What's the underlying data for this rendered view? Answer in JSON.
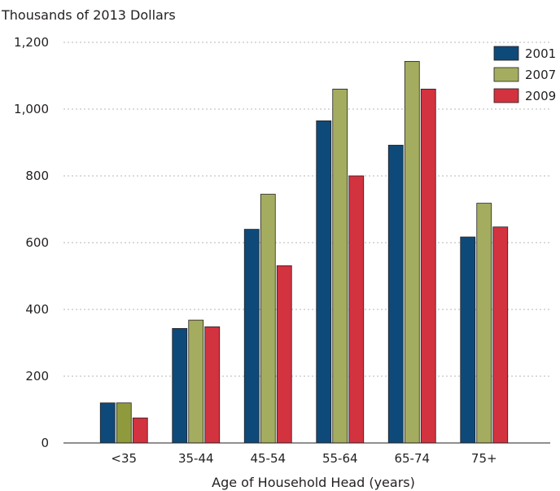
{
  "chart_data": {
    "type": "bar",
    "ylabel": "Thousands of 2013 Dollars",
    "xlabel": "Age of Household Head (years)",
    "categories": [
      "<35",
      "35-44",
      "45-54",
      "55-64",
      "65-74",
      "75+"
    ],
    "series": [
      {
        "name": "2001",
        "color": "#0e4a79",
        "values": [
          120,
          343,
          640,
          965,
          892,
          617
        ]
      },
      {
        "name": "2007",
        "color": "#a4ad5f",
        "values": [
          120,
          368,
          745,
          1060,
          1143,
          718
        ]
      },
      {
        "name": "2009",
        "color": "#d3323f",
        "values": [
          75,
          348,
          531,
          800,
          1060,
          647
        ]
      }
    ],
    "highlight": {
      "category_index": 0,
      "series_index": 1,
      "color": "#8f9a3c"
    },
    "ylim": [
      0,
      1200
    ],
    "yticks": [
      0,
      200,
      400,
      600,
      800,
      1000,
      1200
    ],
    "ytick_labels": [
      "0",
      "200",
      "400",
      "600",
      "800",
      "1,000",
      "1,200"
    ],
    "grid": true,
    "legend_position": "top-right"
  }
}
